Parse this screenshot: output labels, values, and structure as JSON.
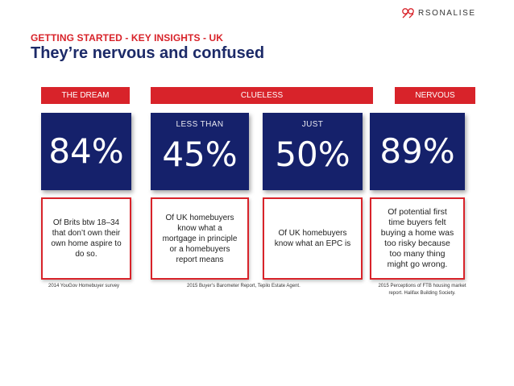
{
  "logo": {
    "text": "RSONALISE"
  },
  "header": {
    "kicker": "GETTING STARTED - KEY INSIGHTS - UK",
    "title": "They’re nervous and confused"
  },
  "bands": [
    {
      "label": "THE DREAM"
    },
    {
      "label": "CLUELESS"
    },
    {
      "label": "NERVOUS"
    }
  ],
  "stats": [
    {
      "prefix": "",
      "value": "84%"
    },
    {
      "prefix": "LESS THAN",
      "value": "45%"
    },
    {
      "prefix": "JUST",
      "value": "50%"
    },
    {
      "prefix": "",
      "value": "89%"
    }
  ],
  "descriptions": [
    "Of Brits btw 18–34 that don’t own their own home aspire to do so.",
    "Of UK homebuyers know what a mortgage in principle or a homebuyers report means",
    "Of UK homebuyers know what an EPC is",
    "Of potential first time buyers felt buying a home was too risky because too many thing might go wrong."
  ],
  "sources": [
    "2014 YouGov Homebuyer survey",
    "2015 Buyer’s Barometer Report, Tepilo Estate Agent.",
    "2015 Perceptions of FTB housing market report. Halifax Building Society."
  ],
  "colors": {
    "accent_red": "#d8232a",
    "navy": "#15216b",
    "title_navy": "#1c2a68"
  }
}
